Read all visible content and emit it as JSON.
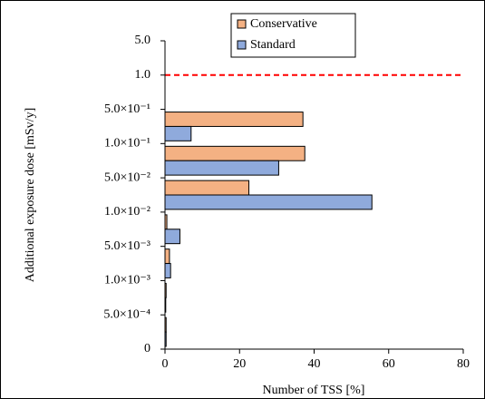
{
  "chart_data": {
    "type": "hbar",
    "x_label": "Number of TSS [%]",
    "y_label": "Additional exposure dose [mSv/y]",
    "y_tick_labels": [
      "5.0",
      "1.0",
      "5.0×10⁻¹",
      "1.0×10⁻¹",
      "5.0×10⁻²",
      "1.0×10⁻²",
      "5.0×10⁻³",
      "1.0×10⁻³",
      "5.0×10⁻⁴",
      "0"
    ],
    "categories": [
      null,
      null,
      null,
      null,
      null,
      null,
      null,
      null,
      null
    ],
    "series": [
      {
        "name": "Conservative",
        "color": "#f4b183",
        "values": [
          0,
          0,
          37,
          37.5,
          22.5,
          0.5,
          1.2,
          0.3,
          0.3
        ]
      },
      {
        "name": "Standard",
        "color": "#8faadc",
        "values": [
          0,
          0,
          7,
          30.5,
          55.5,
          4,
          1.5,
          0.2,
          0.3
        ]
      }
    ],
    "xlim": [
      0,
      80
    ],
    "xticks": [
      0,
      20,
      40,
      60,
      80
    ],
    "reference_line": {
      "tick": 1,
      "color": "#ff0000",
      "dashed": true
    },
    "legend": "top"
  }
}
